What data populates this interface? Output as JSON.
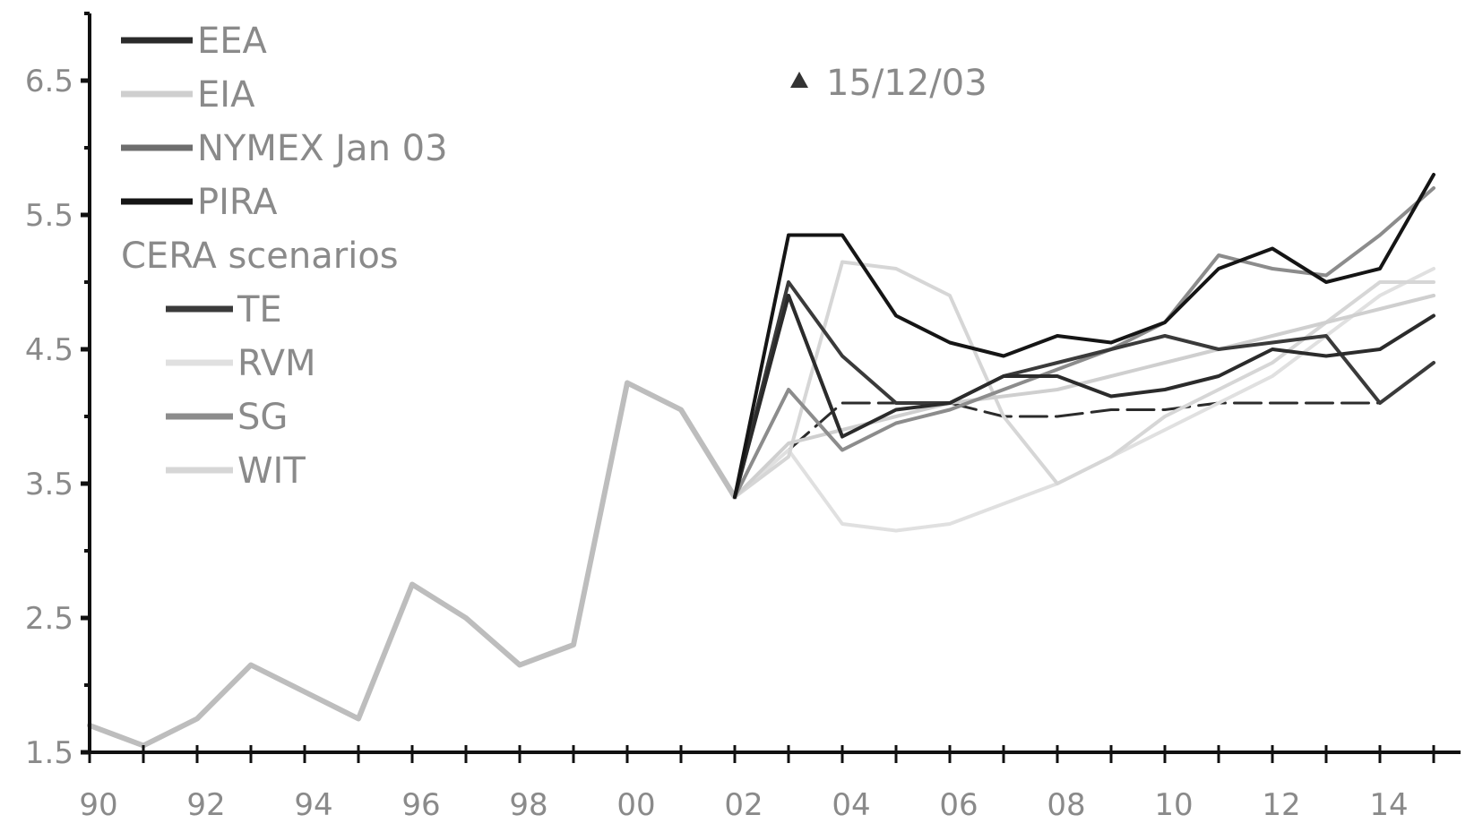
{
  "chart_data": {
    "type": "line",
    "title": "",
    "xlabel": "",
    "ylabel": "",
    "xlim": [
      1990,
      2015.5
    ],
    "ylim": [
      1.5,
      7.0
    ],
    "y_ticks": [
      1.5,
      2.5,
      3.5,
      4.5,
      5.5,
      6.5
    ],
    "y_tick_labels": [
      "1.5",
      "2.5",
      "3.5",
      "4.5",
      "5.5",
      "6.5"
    ],
    "x_tick_labels": [
      {
        "x": 1990,
        "label": "90"
      },
      {
        "x": 1992,
        "label": "92"
      },
      {
        "x": 1994,
        "label": "94"
      },
      {
        "x": 1996,
        "label": "96"
      },
      {
        "x": 1998,
        "label": "98"
      },
      {
        "x": 2000,
        "label": "00"
      },
      {
        "x": 2002,
        "label": "02"
      },
      {
        "x": 2004,
        "label": "04"
      },
      {
        "x": 2006,
        "label": "06"
      },
      {
        "x": 2008,
        "label": "08"
      },
      {
        "x": 2010,
        "label": "10"
      },
      {
        "x": 2012,
        "label": "12"
      },
      {
        "x": 2014,
        "label": "14"
      }
    ],
    "grid": false,
    "legend_position": "top-left",
    "annotation": {
      "text": "15/12/03",
      "marker": "triangle",
      "x": 2003.2,
      "y": 6.5
    },
    "historical": {
      "color": "#bdbdbd",
      "x": [
        1990,
        1991,
        1992,
        1993,
        1994,
        1995,
        1996,
        1997,
        1998,
        1999,
        2000,
        2001,
        2002
      ],
      "y": [
        1.7,
        1.55,
        1.75,
        2.15,
        1.95,
        1.75,
        2.75,
        2.5,
        2.15,
        2.3,
        4.25,
        4.05,
        3.4
      ]
    },
    "legend_header": "CERA scenarios",
    "series": [
      {
        "name": "EEA",
        "color": "#2b2b2b",
        "indent": false,
        "x": [
          2002,
          2003,
          2004,
          2005,
          2006,
          2007,
          2008,
          2009,
          2010,
          2011,
          2012,
          2013,
          2014,
          2015
        ],
        "y": [
          3.4,
          4.9,
          3.85,
          4.05,
          4.1,
          4.3,
          4.3,
          4.15,
          4.2,
          4.3,
          4.5,
          4.45,
          4.5,
          4.75
        ]
      },
      {
        "name": "EIA",
        "color": "#cfcfcf",
        "indent": false,
        "x": [
          2002,
          2003,
          2004,
          2005,
          2006,
          2007,
          2008,
          2009,
          2010,
          2011,
          2012,
          2013,
          2014,
          2015
        ],
        "y": [
          3.4,
          3.8,
          3.9,
          4.0,
          4.1,
          4.15,
          4.2,
          4.3,
          4.4,
          4.5,
          4.6,
          4.7,
          4.8,
          4.9
        ]
      },
      {
        "name": "NYMEX Jan 03",
        "color": "#6e6e6e",
        "indent": false,
        "x": [
          2002,
          2003,
          2004
        ],
        "y": [
          3.4,
          4.9,
          3.85
        ]
      },
      {
        "name": "PIRA",
        "color": "#151515",
        "indent": false,
        "x": [
          2002,
          2003,
          2004,
          2005,
          2006,
          2007,
          2008,
          2009,
          2010,
          2011,
          2012,
          2013,
          2014,
          2015
        ],
        "y": [
          3.4,
          5.35,
          5.35,
          4.75,
          4.55,
          4.45,
          4.6,
          4.55,
          4.7,
          5.1,
          5.25,
          5.0,
          5.1,
          5.8
        ]
      },
      {
        "name": "TE",
        "color": "#3a3a3a",
        "indent": true,
        "x": [
          2002,
          2003,
          2004,
          2005,
          2006,
          2007,
          2008,
          2009,
          2010,
          2011,
          2012,
          2013,
          2014,
          2015
        ],
        "y": [
          3.4,
          5.0,
          4.45,
          4.1,
          4.1,
          4.3,
          4.4,
          4.5,
          4.6,
          4.5,
          4.55,
          4.6,
          4.1,
          4.4
        ]
      },
      {
        "name": "RVM",
        "color": "#e0e0e0",
        "indent": true,
        "x": [
          2002,
          2003,
          2004,
          2005,
          2006,
          2007,
          2008,
          2009,
          2010,
          2011,
          2012,
          2013,
          2014,
          2015
        ],
        "y": [
          3.4,
          3.75,
          3.2,
          3.15,
          3.2,
          3.35,
          3.5,
          3.7,
          3.9,
          4.1,
          4.3,
          4.6,
          4.9,
          5.1
        ]
      },
      {
        "name": "SG",
        "color": "#8c8c8c",
        "indent": true,
        "x": [
          2002,
          2003,
          2004,
          2005,
          2006,
          2007,
          2008,
          2009,
          2010,
          2011,
          2012,
          2013,
          2014,
          2015
        ],
        "y": [
          3.4,
          4.2,
          3.75,
          3.95,
          4.05,
          4.2,
          4.35,
          4.5,
          4.7,
          5.2,
          5.1,
          5.05,
          5.35,
          5.7
        ]
      },
      {
        "name": "WIT",
        "color": "#d6d6d6",
        "indent": true,
        "x": [
          2002,
          2003,
          2004,
          2005,
          2006,
          2007,
          2008,
          2009,
          2010,
          2011,
          2012,
          2013,
          2014,
          2015
        ],
        "y": [
          3.4,
          3.7,
          5.15,
          5.1,
          4.9,
          4.0,
          3.5,
          3.7,
          4.0,
          4.2,
          4.4,
          4.7,
          5.0,
          5.0
        ]
      }
    ],
    "extra_lines": [
      {
        "color": "#2b2b2b",
        "x": [
          2003,
          2004,
          2005,
          2006,
          2007,
          2008,
          2009,
          2010,
          2011,
          2012,
          2013,
          2014
        ],
        "y": [
          3.75,
          4.1,
          4.1,
          4.1,
          4.0,
          4.0,
          4.05,
          4.05,
          4.1,
          4.1,
          4.1,
          4.1
        ]
      }
    ]
  }
}
